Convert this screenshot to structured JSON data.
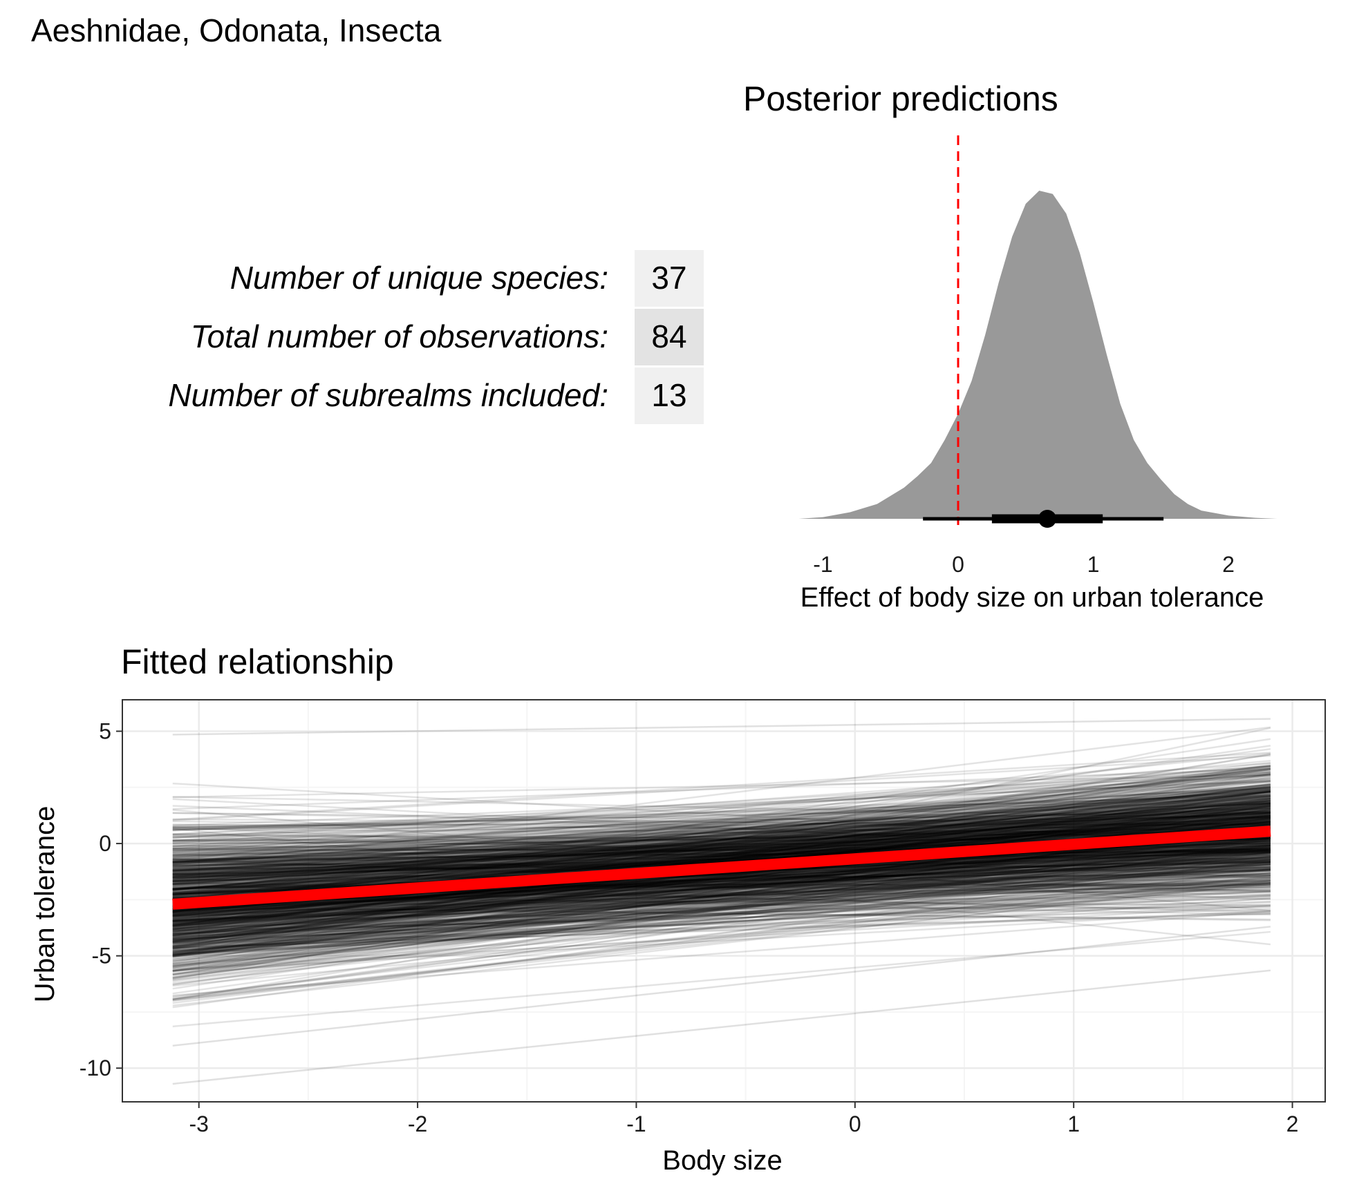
{
  "figure_title": "Aeshnidae, Odonata, Insecta",
  "stats": [
    {
      "label": "Number of unique species:",
      "value": "37"
    },
    {
      "label": "Total number of observations:",
      "value": "84"
    },
    {
      "label": "Number of subrealms included:",
      "value": "13"
    }
  ],
  "colors": {
    "density_fill": "#999999",
    "zero_line": "#ff0000",
    "fit_line": "#ff0000",
    "posterior_lines": "#000000",
    "stat_cell_light": "#f0f0f0",
    "stat_cell_dark": "#e3e3e3",
    "grid_major": "#ebebeb",
    "grid_minor": "#f5f5f5"
  },
  "chart_data": [
    {
      "type": "area",
      "title": "Posterior predictions",
      "xlabel": "Effect of body size on urban tolerance",
      "ylabel": "",
      "xlim": [
        -1.2,
        2.5
      ],
      "xticks": [
        -1,
        0,
        1,
        2
      ],
      "xtick_labels": [
        "-1",
        "0",
        "1",
        "2"
      ],
      "grid": false,
      "reference_line_x": 0,
      "density": {
        "x": [
          -1.18,
          -1.0,
          -0.8,
          -0.6,
          -0.5,
          -0.4,
          -0.3,
          -0.2,
          -0.1,
          0.0,
          0.1,
          0.2,
          0.3,
          0.4,
          0.5,
          0.6,
          0.7,
          0.8,
          0.9,
          1.0,
          1.1,
          1.2,
          1.3,
          1.4,
          1.5,
          1.6,
          1.7,
          1.8,
          2.0,
          2.2,
          2.36
        ],
        "y": [
          0.0,
          0.005,
          0.02,
          0.045,
          0.07,
          0.095,
          0.13,
          0.17,
          0.24,
          0.32,
          0.42,
          0.56,
          0.72,
          0.86,
          0.96,
          1.0,
          0.99,
          0.93,
          0.81,
          0.66,
          0.5,
          0.35,
          0.24,
          0.17,
          0.12,
          0.075,
          0.045,
          0.025,
          0.01,
          0.003,
          0.0
        ]
      },
      "point_estimate": 0.66,
      "interval_inner": [
        0.25,
        1.07
      ],
      "interval_outer": [
        -0.26,
        1.52
      ]
    },
    {
      "type": "line",
      "title": "Fitted relationship",
      "xlabel": "Body size",
      "ylabel": "Urban tolerance",
      "xlim": [
        -3.35,
        2.15
      ],
      "ylim": [
        -11.5,
        6.4
      ],
      "xticks": [
        -3,
        -2,
        -1,
        0,
        1,
        2
      ],
      "xtick_labels": [
        "-3",
        "-2",
        "-1",
        "0",
        "1",
        "2"
      ],
      "yticks": [
        -10,
        -5,
        0,
        5
      ],
      "ytick_labels": [
        "-10",
        "-5",
        "0",
        "5"
      ],
      "grid": true,
      "x_range": [
        -3.12,
        1.9
      ],
      "mean_fit": {
        "x": [
          -3.12,
          1.9
        ],
        "y": [
          -2.7,
          0.55
        ]
      },
      "posterior_draws": {
        "count": 1000,
        "intercept_mean": -0.68,
        "intercept_sd": 1.2,
        "slope_mean": 0.65,
        "slope_sd": 0.4,
        "extreme_lines": [
          {
            "y_start": -10.7,
            "y_end": -5.65
          },
          {
            "y_start": 4.85,
            "y_end": 5.55
          },
          {
            "y_start": -9.0,
            "y_end": -3.7
          }
        ]
      }
    }
  ]
}
